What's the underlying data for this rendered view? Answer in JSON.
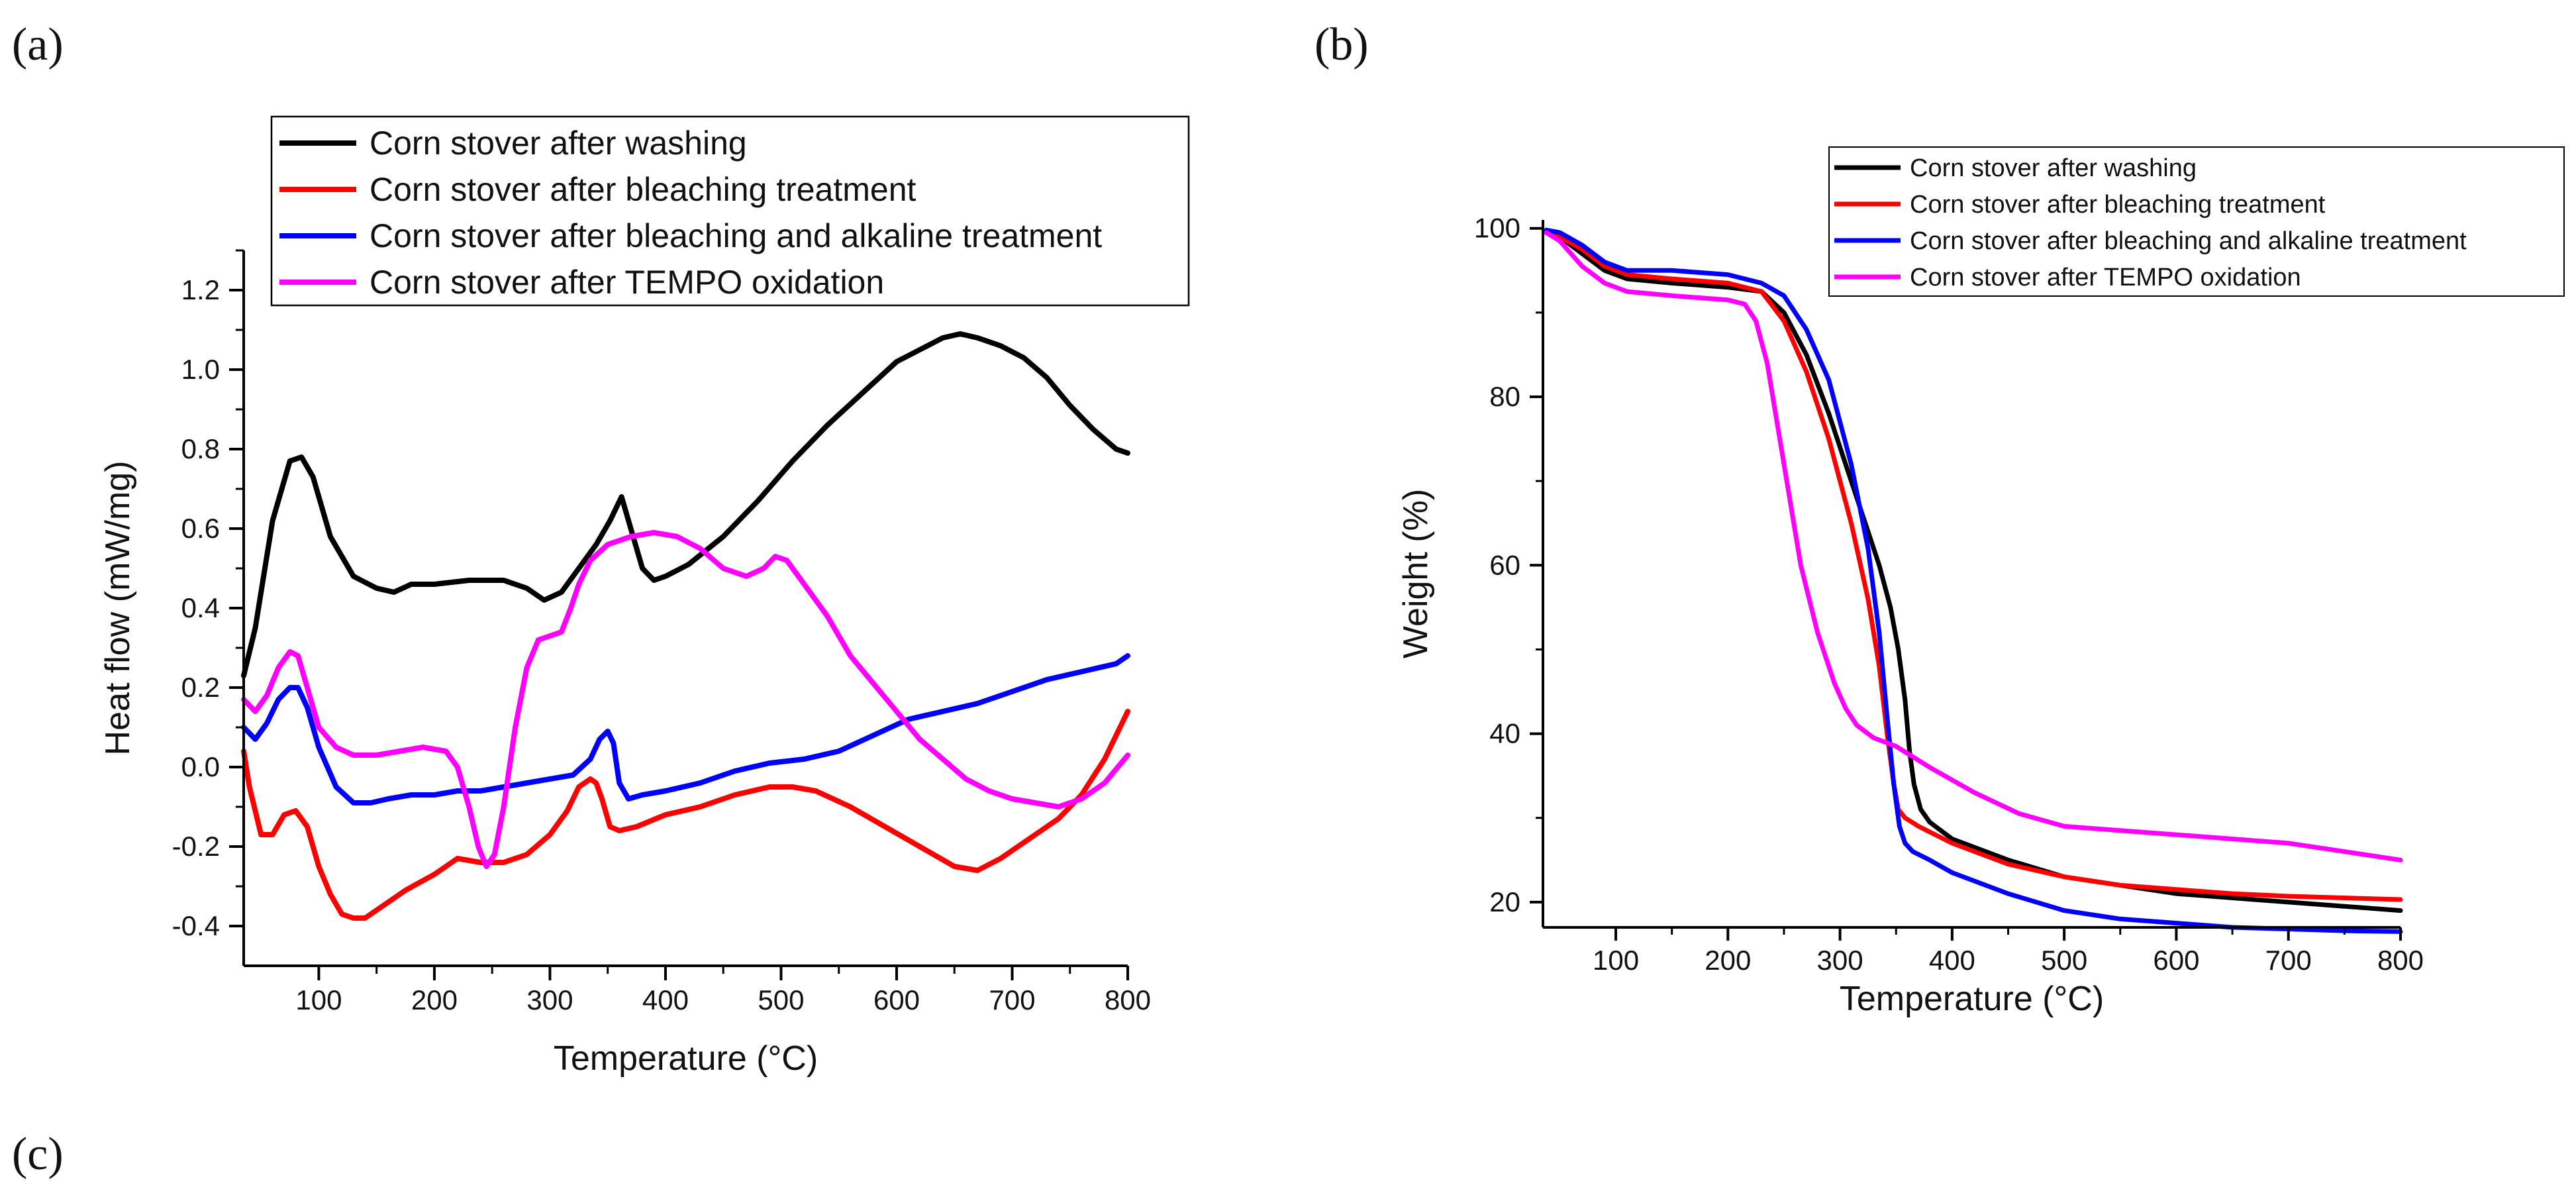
{
  "panels": {
    "a": "(a)",
    "b": "(b)",
    "c": "(c)"
  },
  "colors": {
    "washing": "#000000",
    "bleaching": "#ff0000",
    "alkaline": "#0000ff",
    "tempo": "#ff00ff"
  },
  "chart_data": [
    {
      "id": "a",
      "type": "line",
      "title": "",
      "xlabel": "Temperature (°C)",
      "ylabel": "Heat flow (mW/mg)",
      "xlim": [
        35,
        800
      ],
      "ylim": [
        -0.5,
        1.3
      ],
      "xticks": [
        100,
        200,
        300,
        400,
        500,
        600,
        700,
        800
      ],
      "yticks": [
        -0.4,
        -0.2,
        0.0,
        0.2,
        0.4,
        0.6,
        0.8,
        1.0,
        1.2
      ],
      "ytick_labels": [
        "-0.4",
        "-0.2",
        "0.0",
        "0.2",
        "0.4",
        "0.6",
        "0.8",
        "1.0",
        "1.2"
      ],
      "legend_position": "top",
      "series": [
        {
          "name": "Corn stover after washing",
          "color": "#000000",
          "x": [
            35,
            45,
            60,
            75,
            85,
            95,
            110,
            130,
            150,
            165,
            180,
            200,
            230,
            260,
            280,
            295,
            310,
            325,
            340,
            352,
            362,
            370,
            380,
            390,
            400,
            420,
            450,
            480,
            510,
            540,
            570,
            600,
            620,
            640,
            655,
            670,
            690,
            710,
            730,
            750,
            770,
            790,
            800
          ],
          "y": [
            0.23,
            0.35,
            0.62,
            0.77,
            0.78,
            0.73,
            0.58,
            0.48,
            0.45,
            0.44,
            0.46,
            0.46,
            0.47,
            0.47,
            0.45,
            0.42,
            0.44,
            0.5,
            0.56,
            0.62,
            0.68,
            0.6,
            0.5,
            0.47,
            0.48,
            0.51,
            0.58,
            0.67,
            0.77,
            0.86,
            0.94,
            1.02,
            1.05,
            1.08,
            1.09,
            1.08,
            1.06,
            1.03,
            0.98,
            0.91,
            0.85,
            0.8,
            0.79
          ]
        },
        {
          "name": "Corn stover after bleaching treatment",
          "color": "#ff0000",
          "x": [
            35,
            40,
            50,
            60,
            70,
            80,
            90,
            100,
            110,
            120,
            130,
            140,
            155,
            175,
            200,
            220,
            240,
            260,
            280,
            300,
            315,
            325,
            335,
            340,
            345,
            352,
            360,
            375,
            400,
            430,
            460,
            490,
            510,
            530,
            560,
            590,
            620,
            650,
            670,
            690,
            710,
            740,
            760,
            780,
            800
          ],
          "y": [
            0.04,
            -0.05,
            -0.17,
            -0.17,
            -0.12,
            -0.11,
            -0.15,
            -0.25,
            -0.32,
            -0.37,
            -0.38,
            -0.38,
            -0.35,
            -0.31,
            -0.27,
            -0.23,
            -0.24,
            -0.24,
            -0.22,
            -0.17,
            -0.11,
            -0.05,
            -0.03,
            -0.04,
            -0.08,
            -0.15,
            -0.16,
            -0.15,
            -0.12,
            -0.1,
            -0.07,
            -0.05,
            -0.05,
            -0.06,
            -0.1,
            -0.15,
            -0.2,
            -0.25,
            -0.26,
            -0.23,
            -0.19,
            -0.13,
            -0.07,
            0.02,
            0.14
          ]
        },
        {
          "name": "Corn stover after bleaching and alkaline treatment",
          "color": "#0000ff",
          "x": [
            35,
            45,
            55,
            65,
            75,
            82,
            90,
            100,
            115,
            130,
            145,
            160,
            180,
            200,
            220,
            240,
            260,
            280,
            300,
            320,
            335,
            343,
            350,
            355,
            360,
            368,
            380,
            400,
            430,
            460,
            490,
            520,
            550,
            580,
            610,
            640,
            670,
            700,
            730,
            760,
            790,
            800
          ],
          "y": [
            0.1,
            0.07,
            0.11,
            0.17,
            0.2,
            0.2,
            0.15,
            0.05,
            -0.05,
            -0.09,
            -0.09,
            -0.08,
            -0.07,
            -0.07,
            -0.06,
            -0.06,
            -0.05,
            -0.04,
            -0.03,
            -0.02,
            0.02,
            0.07,
            0.09,
            0.06,
            -0.04,
            -0.08,
            -0.07,
            -0.06,
            -0.04,
            -0.01,
            0.01,
            0.02,
            0.04,
            0.08,
            0.12,
            0.14,
            0.16,
            0.19,
            0.22,
            0.24,
            0.26,
            0.28
          ]
        },
        {
          "name": "Corn stover after TEMPO oxidation",
          "color": "#ff00ff",
          "x": [
            35,
            45,
            55,
            65,
            75,
            82,
            90,
            100,
            115,
            130,
            150,
            170,
            190,
            210,
            220,
            230,
            238,
            245,
            252,
            260,
            270,
            280,
            290,
            300,
            310,
            318,
            325,
            335,
            350,
            370,
            390,
            410,
            430,
            450,
            470,
            485,
            495,
            505,
            520,
            540,
            560,
            580,
            600,
            620,
            640,
            660,
            680,
            700,
            720,
            740,
            760,
            780,
            800
          ],
          "y": [
            0.17,
            0.14,
            0.18,
            0.25,
            0.29,
            0.28,
            0.2,
            0.1,
            0.05,
            0.03,
            0.03,
            0.04,
            0.05,
            0.04,
            0.0,
            -0.1,
            -0.2,
            -0.25,
            -0.22,
            -0.1,
            0.1,
            0.25,
            0.32,
            0.33,
            0.34,
            0.4,
            0.46,
            0.52,
            0.56,
            0.58,
            0.59,
            0.58,
            0.55,
            0.5,
            0.48,
            0.5,
            0.53,
            0.52,
            0.46,
            0.38,
            0.28,
            0.21,
            0.14,
            0.07,
            0.02,
            -0.03,
            -0.06,
            -0.08,
            -0.09,
            -0.1,
            -0.08,
            -0.04,
            0.03
          ]
        }
      ]
    },
    {
      "id": "b",
      "type": "line",
      "title": "",
      "xlabel": "Temperature (°C)",
      "ylabel": "Weight (%)",
      "xlim": [
        35,
        800
      ],
      "ylim": [
        17,
        101
      ],
      "xticks": [
        100,
        200,
        300,
        400,
        500,
        600,
        700,
        800
      ],
      "yticks": [
        20,
        40,
        60,
        80,
        100
      ],
      "ytick_labels": [
        "20",
        "40",
        "60",
        "80",
        "100"
      ],
      "legend_position": "top-right",
      "series": [
        {
          "name": "Corn stover after washing",
          "color": "#000000",
          "x": [
            38,
            50,
            70,
            90,
            110,
            150,
            200,
            230,
            250,
            270,
            290,
            310,
            325,
            335,
            345,
            352,
            358,
            362,
            366,
            372,
            380,
            400,
            450,
            500,
            550,
            600,
            650,
            700,
            750,
            800
          ],
          "y": [
            99.5,
            99,
            97,
            95,
            94,
            93.5,
            93,
            92.5,
            90,
            85,
            78,
            70,
            64,
            60,
            55,
            50,
            44,
            38,
            34,
            31,
            29.5,
            27.5,
            25,
            23,
            22,
            21,
            20.5,
            20,
            19.5,
            19
          ]
        },
        {
          "name": "Corn stover after bleaching treatment",
          "color": "#ff0000",
          "x": [
            38,
            50,
            70,
            90,
            110,
            150,
            200,
            230,
            250,
            270,
            290,
            310,
            325,
            335,
            342,
            348,
            352,
            358,
            370,
            400,
            450,
            500,
            550,
            600,
            650,
            700,
            750,
            800
          ],
          "y": [
            99.5,
            99,
            97.5,
            95.5,
            94.5,
            94,
            93.5,
            92.5,
            89,
            83,
            75,
            65,
            56,
            48,
            40,
            34,
            31,
            30,
            29,
            27,
            24.5,
            23,
            22,
            21.5,
            21,
            20.7,
            20.5,
            20.3
          ]
        },
        {
          "name": "Corn stover after bleaching and alkaline treatment",
          "color": "#0000ff",
          "x": [
            38,
            50,
            70,
            90,
            110,
            150,
            200,
            230,
            250,
            270,
            290,
            310,
            325,
            335,
            342,
            348,
            353,
            358,
            365,
            380,
            400,
            450,
            500,
            550,
            600,
            650,
            700,
            750,
            800
          ],
          "y": [
            99.8,
            99.5,
            98,
            96,
            95,
            95,
            94.5,
            93.5,
            92,
            88,
            82,
            72,
            62,
            52,
            42,
            34,
            29,
            27,
            26,
            25,
            23.5,
            21,
            19,
            18,
            17.5,
            17,
            16.8,
            16.6,
            16.5
          ]
        },
        {
          "name": "Corn stover after TEMPO oxidation",
          "color": "#ff00ff",
          "x": [
            38,
            50,
            70,
            90,
            110,
            150,
            200,
            215,
            225,
            235,
            245,
            255,
            265,
            280,
            295,
            305,
            315,
            330,
            350,
            380,
            420,
            460,
            500,
            550,
            600,
            650,
            700,
            750,
            800
          ],
          "y": [
            99.5,
            98.5,
            95.5,
            93.5,
            92.5,
            92,
            91.5,
            91,
            89,
            84,
            76,
            68,
            60,
            52,
            46,
            43,
            41,
            39.5,
            38.5,
            36,
            33,
            30.5,
            29,
            28.5,
            28,
            27.5,
            27,
            26,
            25
          ]
        }
      ]
    }
  ]
}
